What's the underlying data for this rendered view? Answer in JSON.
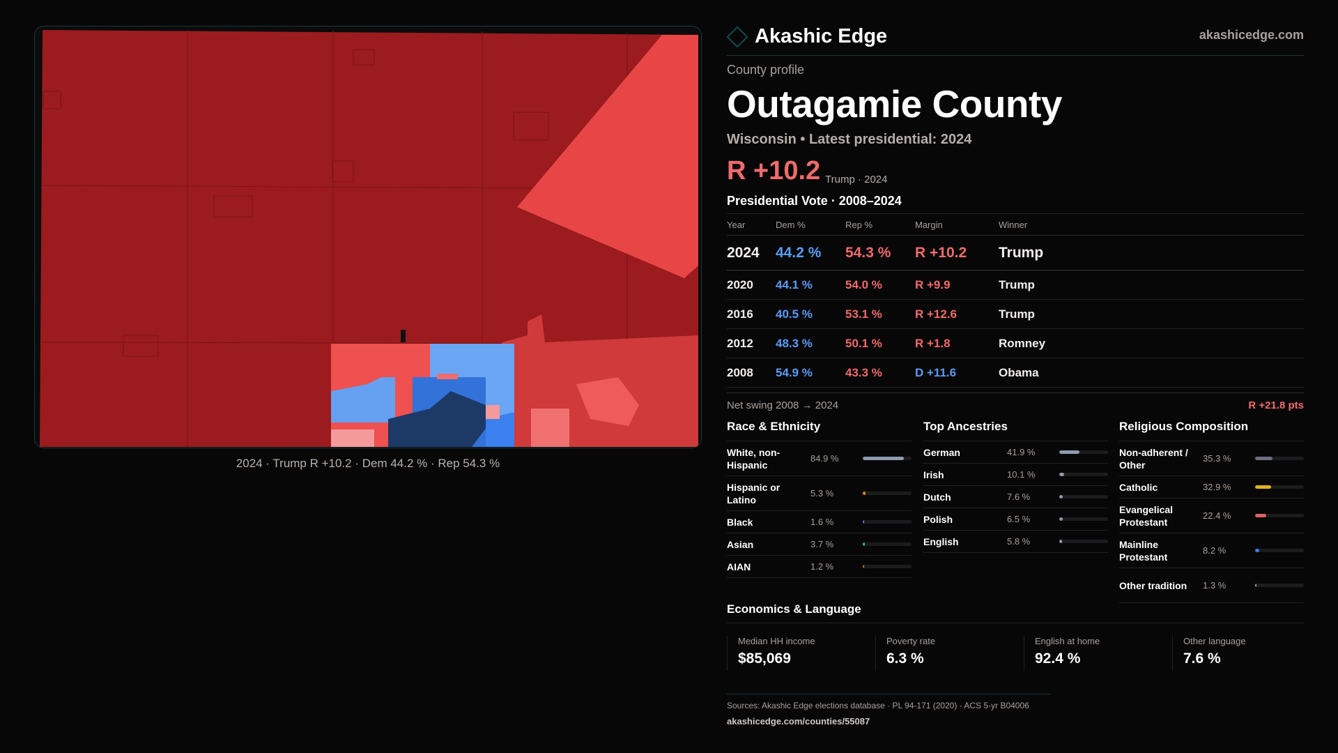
{
  "header": {
    "brand": "Akashic Edge",
    "site": "akashicedge.com"
  },
  "profile": {
    "label": "County profile",
    "title": "Outagamie County",
    "subtitle": "Wisconsin • Latest presidential: 2024",
    "margin": "R +10.2",
    "margin_note": "Trump · 2024"
  },
  "map": {
    "caption": "2024 · Trump R +10.2 · Dem 44.2 % · Rep 54.3 %"
  },
  "vote": {
    "title": "Presidential Vote · 2008–2024",
    "columns": [
      "Year",
      "Dem %",
      "Rep %",
      "Margin",
      "Winner"
    ],
    "rows": [
      {
        "year": "2024",
        "dem": "44.2 %",
        "rep": "54.3 %",
        "margin": "R +10.2",
        "party": "R",
        "winner": "Trump"
      },
      {
        "year": "2020",
        "dem": "44.1 %",
        "rep": "54.0 %",
        "margin": "R +9.9",
        "party": "R",
        "winner": "Trump"
      },
      {
        "year": "2016",
        "dem": "40.5 %",
        "rep": "53.1 %",
        "margin": "R +12.6",
        "party": "R",
        "winner": "Trump"
      },
      {
        "year": "2012",
        "dem": "48.3 %",
        "rep": "50.1 %",
        "margin": "R +1.8",
        "party": "R",
        "winner": "Romney"
      },
      {
        "year": "2008",
        "dem": "54.9 %",
        "rep": "43.3 %",
        "margin": "D +11.6",
        "party": "D",
        "winner": "Obama"
      }
    ],
    "swing_label": "Net swing 2008 → 2024",
    "swing_value": "R +21.8 pts"
  },
  "race": {
    "title": "Race & Ethnicity",
    "items": [
      {
        "label": "White, non-Hispanic",
        "value": "84.9 %",
        "pct": 84.9,
        "color": "#8e9aae"
      },
      {
        "label": "Hispanic or Latino",
        "value": "5.3 %",
        "pct": 5.3,
        "color": "#e08a10"
      },
      {
        "label": "Black",
        "value": "1.6 %",
        "pct": 1.6,
        "color": "#7a6ee0"
      },
      {
        "label": "Asian",
        "value": "3.7 %",
        "pct": 3.7,
        "color": "#20c08a"
      },
      {
        "label": "AIAN",
        "value": "1.2 %",
        "pct": 1.2,
        "color": "#c87010"
      }
    ]
  },
  "ancestry": {
    "title": "Top Ancestries",
    "items": [
      {
        "label": "German",
        "value": "41.9 %",
        "pct": 41.9,
        "color": "#8e9aae"
      },
      {
        "label": "Irish",
        "value": "10.1 %",
        "pct": 10.1,
        "color": "#8e9aae"
      },
      {
        "label": "Dutch",
        "value": "7.6 %",
        "pct": 7.6,
        "color": "#8e9aae"
      },
      {
        "label": "Polish",
        "value": "6.5 %",
        "pct": 6.5,
        "color": "#8e9aae"
      },
      {
        "label": "English",
        "value": "5.8 %",
        "pct": 5.8,
        "color": "#8e9aae"
      }
    ]
  },
  "religion": {
    "title": "Religious Composition",
    "items": [
      {
        "label": "Non-adherent / Other",
        "value": "35.3 %",
        "pct": 35.3,
        "color": "#6b7080"
      },
      {
        "label": "Catholic",
        "value": "32.9 %",
        "pct": 32.9,
        "color": "#e0b020"
      },
      {
        "label": "Evangelical Protestant",
        "value": "22.4 %",
        "pct": 22.4,
        "color": "#e06060"
      },
      {
        "label": "Mainline Protestant",
        "value": "8.2 %",
        "pct": 8.2,
        "color": "#3a7ee0"
      },
      {
        "label": "Other tradition",
        "value": "1.3 %",
        "pct": 1.3,
        "color": "#a0a0a0"
      }
    ]
  },
  "economics": {
    "title": "Economics & Language",
    "stats": [
      {
        "label": "Median HH income",
        "value": "$85,069"
      },
      {
        "label": "Poverty rate",
        "value": "6.3 %"
      },
      {
        "label": "English at home",
        "value": "92.4 %"
      },
      {
        "label": "Other language",
        "value": "7.6 %"
      }
    ]
  },
  "footer": {
    "sources": "Sources: Akashic Edge elections database · PL 94-171 (2020) · ACS 5-yr B04006",
    "url": "akashicedge.com/counties/55087"
  },
  "colors": {
    "rep": "#f06b6b",
    "dem": "#5b9cf5",
    "accent": "#17383e"
  }
}
